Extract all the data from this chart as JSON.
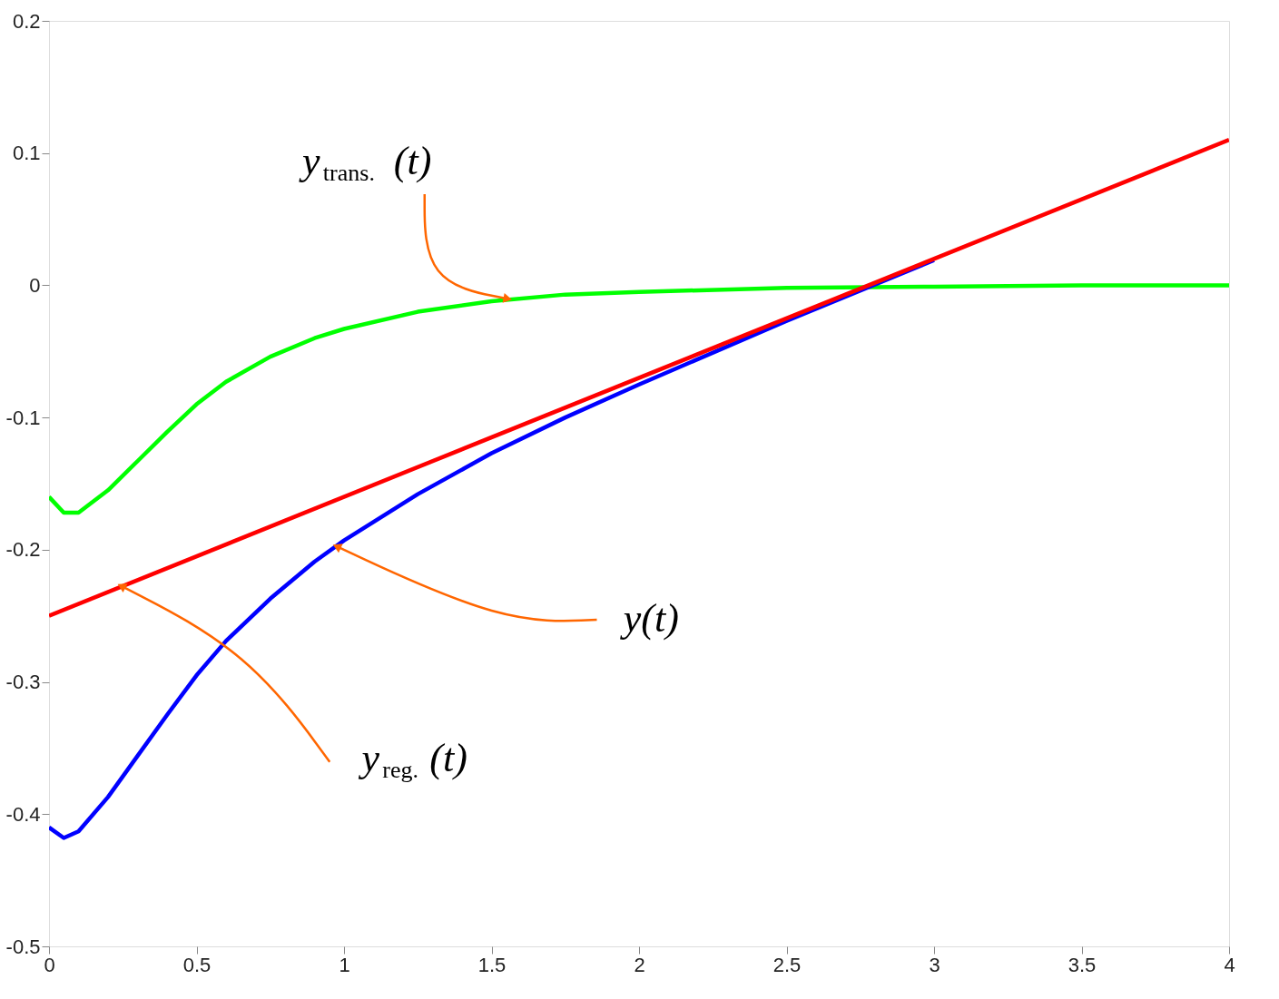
{
  "chart_data": {
    "type": "line",
    "xlim": [
      0,
      4
    ],
    "ylim": [
      -0.5,
      0.2
    ],
    "xticks": [
      0,
      0.5,
      1,
      1.5,
      2,
      2.5,
      3,
      3.5,
      4
    ],
    "yticks": [
      -0.5,
      -0.4,
      -0.3,
      -0.2,
      -0.1,
      0,
      0.1,
      0.2
    ],
    "grid": false,
    "marker": "none",
    "line_style": "solid",
    "x": [
      0,
      0.05,
      0.1,
      0.2,
      0.3,
      0.4,
      0.5,
      0.6,
      0.75,
      0.9,
      1,
      1.25,
      1.5,
      1.75,
      2,
      2.5,
      3,
      3.5,
      4
    ],
    "series": [
      {
        "color": "#00ff00",
        "values": [
          -0.16,
          -0.172,
          -0.172,
          -0.155,
          -0.133,
          -0.111,
          -0.09,
          -0.073,
          -0.054,
          -0.04,
          -0.033,
          -0.02,
          -0.012,
          -0.007,
          -0.005,
          -0.002,
          -0.001,
          0,
          0
        ]
      },
      {
        "color": "#0000ff",
        "values": [
          -0.41,
          -0.418,
          -0.413,
          -0.387,
          -0.356,
          -0.325,
          -0.295,
          -0.269,
          -0.237,
          -0.209,
          -0.193,
          -0.158,
          -0.127,
          -0.1,
          -0.075,
          -0.027,
          0.019,
          null,
          null
        ]
      },
      {
        "color": "#ff0000",
        "x": [
          0,
          4
        ],
        "values": [
          -0.25,
          0.11
        ]
      }
    ],
    "annotations": [
      {
        "text": "y$_{trans.}$(t)",
        "x": 1.55,
        "y": -0.01
      },
      {
        "text": "y(t)",
        "x": 0.98,
        "y": -0.198
      },
      {
        "text": "y$_{reg.}$(t)",
        "x": 0.25,
        "y": -0.228
      }
    ]
  }
}
